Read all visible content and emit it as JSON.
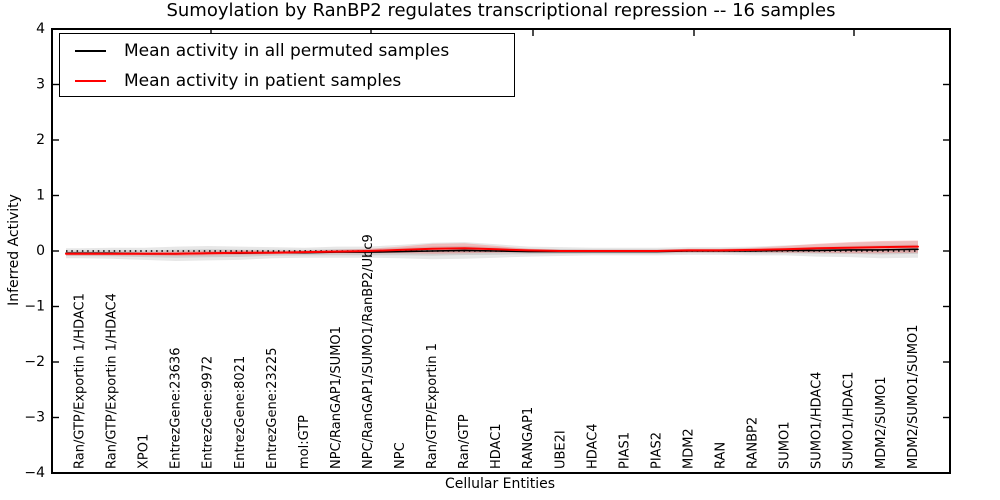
{
  "chart_data": {
    "type": "line",
    "title": "Sumoylation by RanBP2 regulates transcriptional repression -- 16 samples",
    "xlabel": "Cellular Entities",
    "ylabel": "Inferred Activity",
    "ylim": [
      -4,
      4
    ],
    "yticks": [
      -4,
      -3,
      -2,
      -1,
      0,
      1,
      2,
      3,
      4
    ],
    "ytick_labels": [
      "−4",
      "−3",
      "−2",
      "−1",
      "0",
      "1",
      "2",
      "3",
      "4"
    ],
    "grid": false,
    "legend_position": "upper left",
    "zero_line": {
      "y": 0,
      "style": "dotted",
      "color": "#000000"
    },
    "categories": [
      "Ran/GTP/Exportin 1/HDAC1",
      "Ran/GTP/Exportin 1/HDAC4",
      "XPO1",
      "EntrezGene:23636",
      "EntrezGene:9972",
      "EntrezGene:8021",
      "EntrezGene:23225",
      "mol:GTP",
      "NPC/RanGAP1/SUMO1",
      "NPC/RanGAP1/SUMO1/RanBP2/Ubc9",
      "NPC",
      "Ran/GTP/Exportin 1",
      "Ran/GTP",
      "HDAC1",
      "RANGAP1",
      "UBE2I",
      "HDAC4",
      "PIAS1",
      "PIAS2",
      "MDM2",
      "RAN",
      "RANBP2",
      "SUMO1",
      "SUMO1/HDAC4",
      "SUMO1/HDAC1",
      "MDM2/SUMO1",
      "MDM2/SUMO1/SUMO1"
    ],
    "series": [
      {
        "name": "Mean activity in all permuted samples",
        "color": "#000000",
        "values": [
          -0.04,
          -0.04,
          -0.05,
          -0.05,
          -0.04,
          -0.04,
          -0.03,
          -0.03,
          -0.02,
          -0.02,
          -0.01,
          0.0,
          0.01,
          0.0,
          -0.01,
          -0.01,
          -0.01,
          -0.01,
          -0.01,
          0.0,
          0.0,
          0.0,
          0.01,
          0.01,
          0.02,
          0.02,
          0.03
        ]
      },
      {
        "name": "Mean activity in patient samples",
        "color": "#ff0000",
        "values": [
          -0.05,
          -0.05,
          -0.05,
          -0.05,
          -0.04,
          -0.03,
          -0.03,
          -0.02,
          -0.01,
          0.0,
          0.02,
          0.04,
          0.05,
          0.03,
          0.01,
          0.0,
          0.0,
          0.0,
          0.0,
          0.01,
          0.01,
          0.02,
          0.03,
          0.05,
          0.06,
          0.07,
          0.08
        ]
      }
    ],
    "bands": [
      {
        "name": "permuted samples spread",
        "around_series": 0,
        "color": "#c9c9c9",
        "half_widths": [
          0.09,
          0.1,
          0.11,
          0.13,
          0.13,
          0.12,
          0.1,
          0.09,
          0.1,
          0.1,
          0.12,
          0.15,
          0.15,
          0.12,
          0.09,
          0.08,
          0.07,
          0.07,
          0.07,
          0.07,
          0.07,
          0.08,
          0.09,
          0.11,
          0.13,
          0.15,
          0.15
        ]
      },
      {
        "name": "patient samples spread",
        "around_series": 1,
        "color": "#ff5555",
        "half_widths": [
          0.03,
          0.03,
          0.03,
          0.04,
          0.04,
          0.04,
          0.03,
          0.03,
          0.03,
          0.04,
          0.06,
          0.09,
          0.09,
          0.06,
          0.03,
          0.02,
          0.02,
          0.02,
          0.02,
          0.03,
          0.03,
          0.04,
          0.06,
          0.08,
          0.1,
          0.11,
          0.11
        ]
      }
    ]
  }
}
